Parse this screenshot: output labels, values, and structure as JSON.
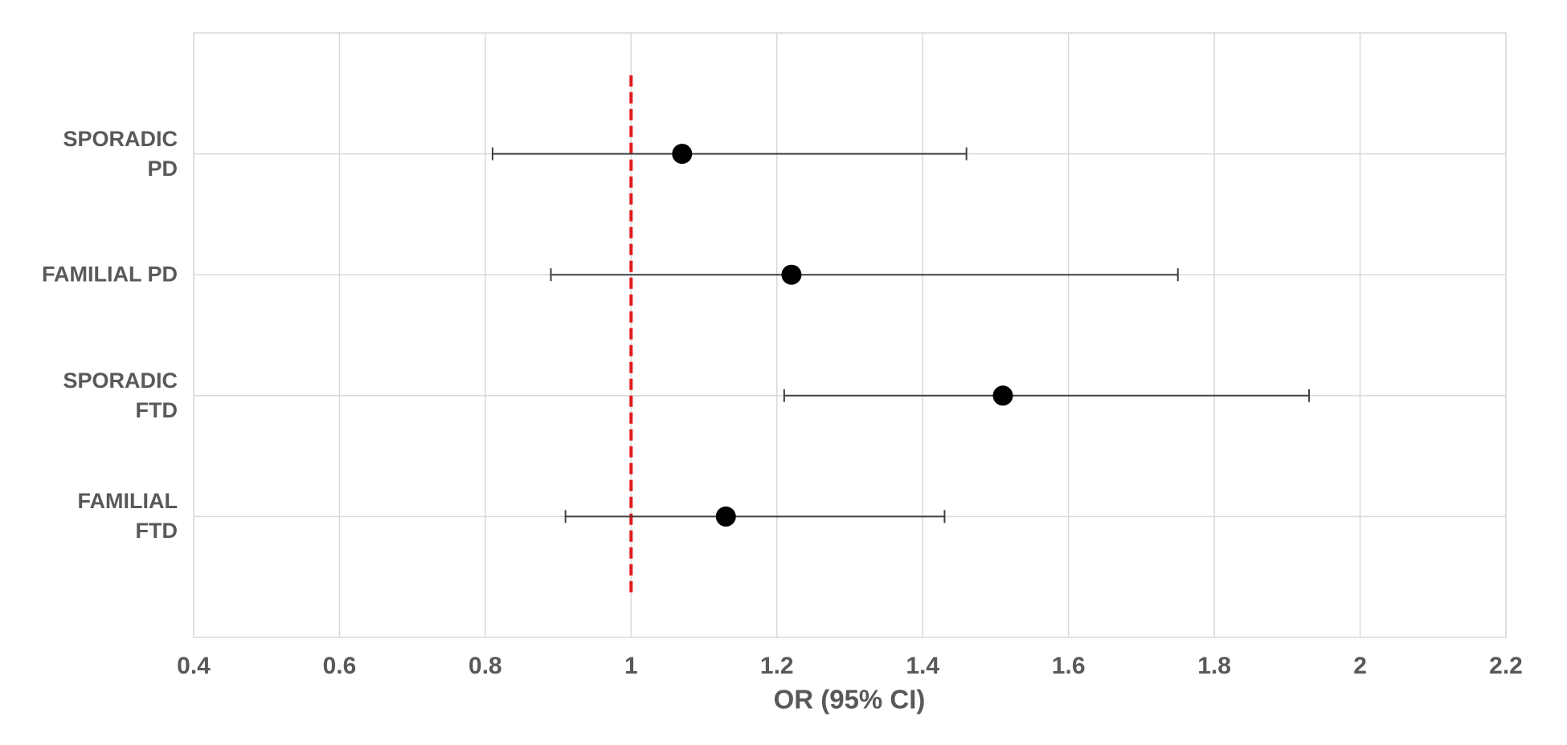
{
  "chart_data": {
    "type": "forest",
    "x_label": "OR (95% CI)",
    "categories": [
      "SPORADIC PD",
      "FAMILIAL PD",
      "SPORADIC FTD",
      "FAMILIAL FTD"
    ],
    "values": [
      1.07,
      1.22,
      1.51,
      1.13
    ],
    "ci_low": [
      0.81,
      0.89,
      1.21,
      0.91
    ],
    "ci_high": [
      1.46,
      1.75,
      1.93,
      1.43
    ],
    "color": "#000000",
    "xlim": [
      0.4,
      2.2
    ],
    "xticks": [
      0.4,
      0.6,
      0.8,
      1,
      1.2,
      1.4,
      1.6,
      1.8,
      2,
      2.2
    ],
    "reference_line": 1,
    "reference_color": "#e31a1c",
    "grid": true
  }
}
